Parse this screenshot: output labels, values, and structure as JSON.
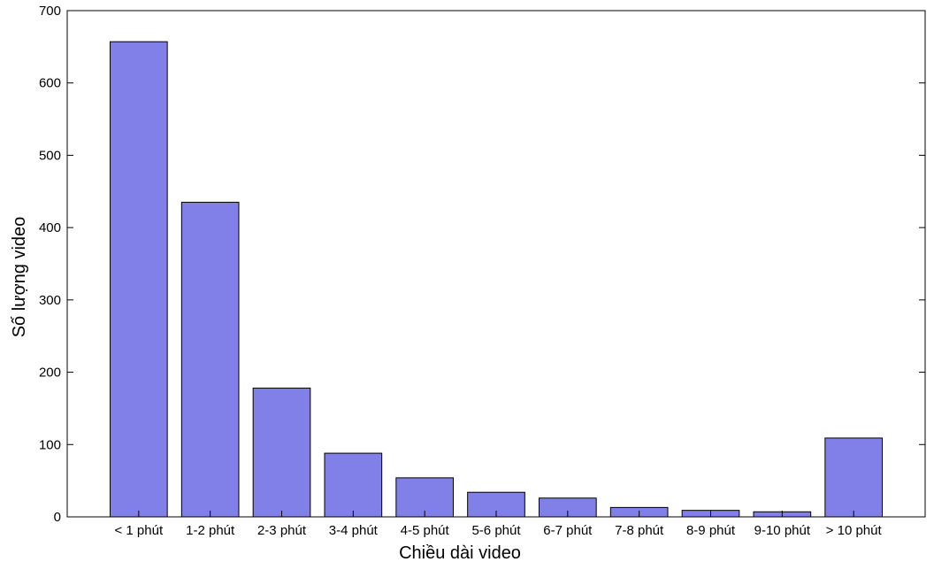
{
  "chart_data": {
    "type": "bar",
    "categories": [
      "< 1 phút",
      "1-2 phút",
      "2-3 phút",
      "3-4 phút",
      "4-5 phút",
      "5-6 phút",
      "6-7 phút",
      "7-8 phút",
      "8-9 phút",
      "9-10 phút",
      "> 10 phút"
    ],
    "values": [
      657,
      435,
      178,
      88,
      54,
      34,
      26,
      13,
      9,
      7,
      109
    ],
    "xlabel": "Chiều dài video",
    "ylabel": "Số lượng video",
    "ylim": [
      0,
      700
    ],
    "yticks": [
      0,
      100,
      200,
      300,
      400,
      500,
      600,
      700
    ],
    "bar_color": "#8080e8",
    "grid": false,
    "box": true
  }
}
